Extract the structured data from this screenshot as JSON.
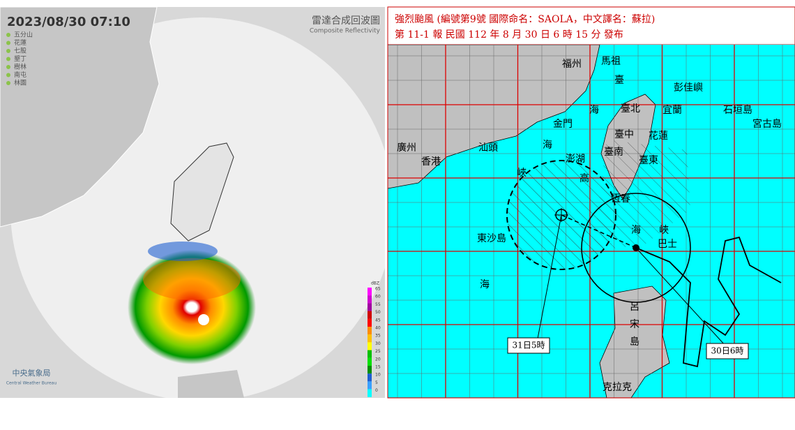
{
  "radar": {
    "timestamp": "2023/08/30  07:10",
    "title": "雷達合成回波圖",
    "subtitle": "Composite Reflectivity",
    "stations": [
      "五分山",
      "花蓮",
      "七股",
      "墾丁",
      "樹林",
      "南屯",
      "林園"
    ],
    "colorbar": {
      "unit": "dBZ",
      "ticks": [
        65,
        60,
        55,
        50,
        45,
        40,
        35,
        30,
        25,
        20,
        15,
        10,
        5,
        0
      ]
    },
    "logo": {
      "name": "中央氣象局",
      "name_en": "Central Weather Bureau"
    }
  },
  "track": {
    "title": "強烈颱風 (編號第9號 國際命名：SAOLA，中文譯名：蘇拉)",
    "issue": "第 11-1 報  民國 112 年 8 月 30 日 6 時 15 分 發布",
    "labels": [
      "福州",
      "馬祖",
      "臺",
      "彭佳嶼",
      "海",
      "臺北",
      "宜蘭",
      "石垣島",
      "宮古島",
      "金門",
      "臺中",
      "花蓮",
      "廣州",
      "汕頭",
      "海",
      "澎湖",
      "香港",
      "臺南",
      "峽",
      "高",
      "臺東",
      "恆春",
      "東沙島",
      "海",
      "海",
      "峽",
      "巴士",
      "呂",
      "宋",
      "島",
      "克拉克"
    ],
    "times": [
      "31日5時",
      "30日6時"
    ]
  }
}
